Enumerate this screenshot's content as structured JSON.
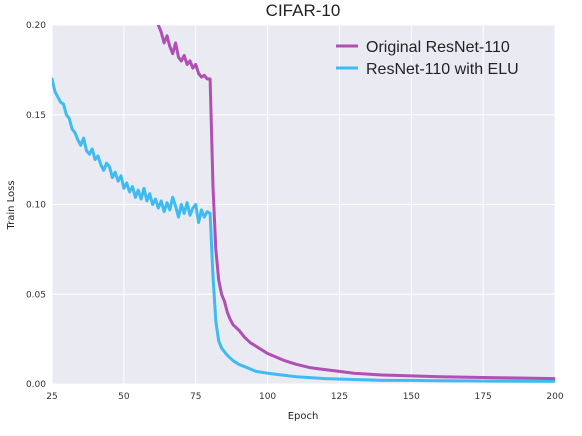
{
  "chart_data": {
    "type": "line",
    "title": "CIFAR-10",
    "xlabel": "Epoch",
    "ylabel": "Train Loss",
    "xlim": [
      25,
      200
    ],
    "ylim": [
      0.0,
      0.2
    ],
    "xticks": [
      25,
      50,
      75,
      100,
      125,
      150,
      175,
      200
    ],
    "yticks": [
      0.0,
      0.05,
      0.1,
      0.15,
      0.2
    ],
    "ytick_labels": [
      "0.00",
      "0.05",
      "0.10",
      "0.15",
      "0.20"
    ],
    "grid": true,
    "legend_position": "top-right",
    "series": [
      {
        "name": "Original ResNet-110",
        "color": "#b04fb4",
        "x": [
          62,
          63,
          64,
          65,
          66,
          67,
          68,
          69,
          70,
          71,
          72,
          73,
          74,
          75,
          76,
          77,
          78,
          79,
          80,
          81,
          82,
          83,
          84,
          85,
          86,
          87,
          88,
          90,
          92,
          94,
          96,
          98,
          100,
          103,
          106,
          110,
          115,
          120,
          125,
          130,
          140,
          150,
          160,
          170,
          180,
          190,
          200
        ],
        "y": [
          0.2,
          0.196,
          0.19,
          0.194,
          0.188,
          0.184,
          0.19,
          0.182,
          0.18,
          0.183,
          0.178,
          0.18,
          0.176,
          0.178,
          0.173,
          0.171,
          0.172,
          0.17,
          0.17,
          0.11,
          0.075,
          0.058,
          0.05,
          0.046,
          0.04,
          0.036,
          0.033,
          0.03,
          0.026,
          0.023,
          0.021,
          0.019,
          0.017,
          0.015,
          0.013,
          0.011,
          0.009,
          0.008,
          0.007,
          0.006,
          0.005,
          0.0045,
          0.004,
          0.0038,
          0.0035,
          0.0033,
          0.003
        ]
      },
      {
        "name": "ResNet-110 with ELU",
        "color": "#3ebcf2",
        "x": [
          25,
          26,
          27,
          28,
          29,
          30,
          31,
          32,
          33,
          34,
          35,
          36,
          37,
          38,
          39,
          40,
          41,
          42,
          43,
          44,
          45,
          46,
          47,
          48,
          49,
          50,
          51,
          52,
          53,
          54,
          55,
          56,
          57,
          58,
          59,
          60,
          61,
          62,
          63,
          64,
          65,
          66,
          67,
          68,
          69,
          70,
          71,
          72,
          73,
          74,
          75,
          76,
          77,
          78,
          79,
          80,
          81,
          82,
          83,
          84,
          86,
          88,
          90,
          93,
          96,
          100,
          105,
          110,
          120,
          130,
          140,
          150,
          160,
          170,
          180,
          190,
          200
        ],
        "y": [
          0.17,
          0.163,
          0.16,
          0.157,
          0.156,
          0.15,
          0.148,
          0.142,
          0.14,
          0.136,
          0.133,
          0.137,
          0.13,
          0.128,
          0.131,
          0.125,
          0.127,
          0.122,
          0.119,
          0.123,
          0.121,
          0.115,
          0.118,
          0.113,
          0.116,
          0.109,
          0.112,
          0.107,
          0.11,
          0.104,
          0.108,
          0.103,
          0.109,
          0.102,
          0.106,
          0.1,
          0.103,
          0.098,
          0.102,
          0.096,
          0.101,
          0.097,
          0.104,
          0.099,
          0.093,
          0.1,
          0.095,
          0.101,
          0.094,
          0.098,
          0.1,
          0.09,
          0.097,
          0.093,
          0.096,
          0.095,
          0.06,
          0.035,
          0.024,
          0.02,
          0.016,
          0.013,
          0.011,
          0.009,
          0.007,
          0.006,
          0.005,
          0.004,
          0.003,
          0.0025,
          0.002,
          0.002,
          0.0018,
          0.0017,
          0.0016,
          0.0015,
          0.0015
        ]
      }
    ]
  }
}
